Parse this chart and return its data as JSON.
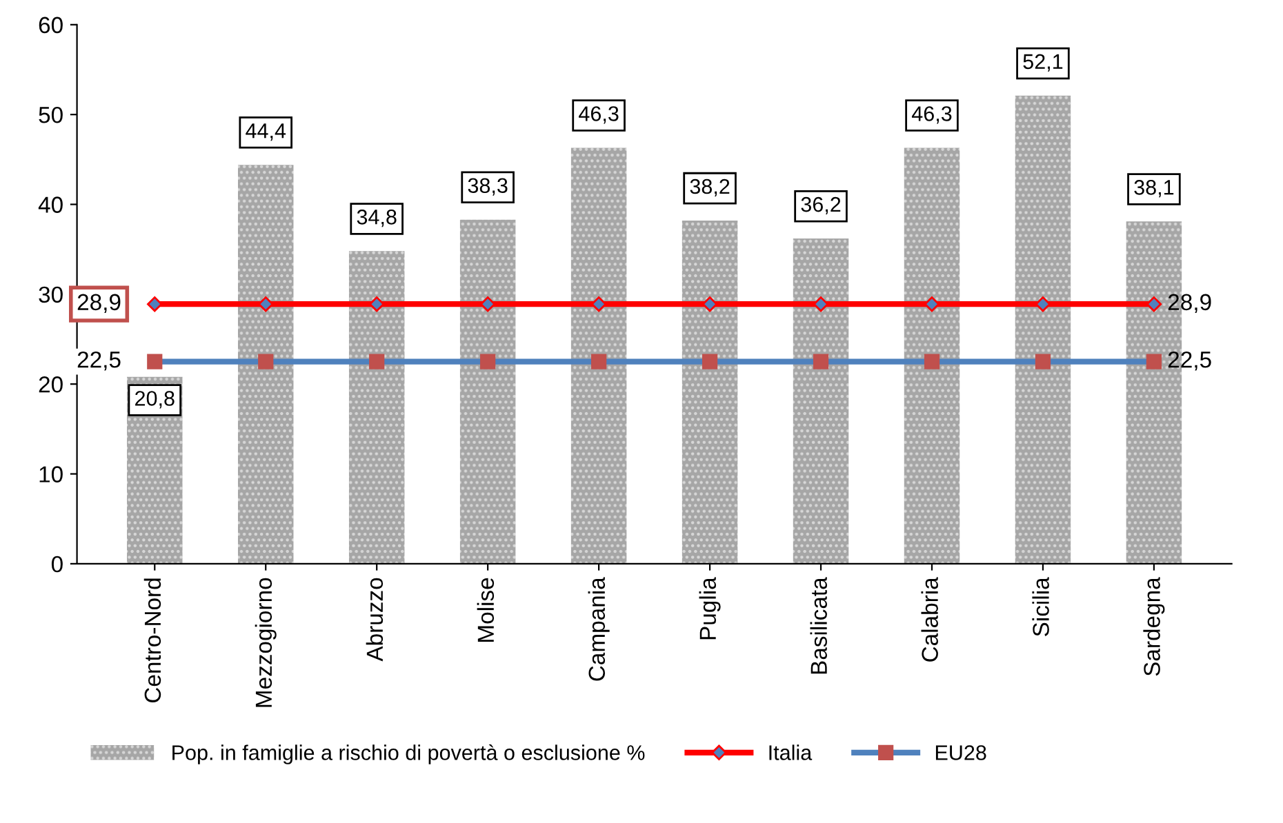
{
  "chart_data": {
    "type": "bar",
    "categories": [
      "Centro-Nord",
      "Mezzogiorno",
      "Abruzzo",
      "Molise",
      "Campania",
      "Puglia",
      "Basilicata",
      "Calabria",
      "Sicilia",
      "Sardegna"
    ],
    "series": [
      {
        "name": "Pop. in famiglie a rischio di povertà o esclusione %",
        "color": "#a6a6a6",
        "values": [
          20.8,
          44.4,
          34.8,
          38.3,
          46.3,
          38.2,
          36.2,
          46.3,
          52.1,
          38.1
        ],
        "value_labels": [
          "20,8",
          "44,4",
          "34,8",
          "38,3",
          "46,3",
          "38,2",
          "36,2",
          "46,3",
          "52,1",
          "38,1"
        ]
      },
      {
        "name": "Italia",
        "type": "line",
        "color": "#ff0000",
        "marker": "diamond",
        "values": [
          28.9,
          28.9,
          28.9,
          28.9,
          28.9,
          28.9,
          28.9,
          28.9,
          28.9,
          28.9
        ],
        "value_labels": [
          "28,9",
          null,
          null,
          null,
          null,
          null,
          null,
          null,
          null,
          "28,9"
        ]
      },
      {
        "name": "EU28",
        "type": "line",
        "color": "#4f81bd",
        "marker": "square",
        "values": [
          22.5,
          22.5,
          22.5,
          22.5,
          22.5,
          22.5,
          22.5,
          22.5,
          22.5,
          22.5
        ],
        "value_labels": [
          "22,5",
          null,
          null,
          null,
          null,
          null,
          null,
          null,
          null,
          "22,5"
        ]
      }
    ],
    "ylim": [
      0,
      60
    ],
    "yticks": [
      0,
      10,
      20,
      30,
      40,
      50,
      60
    ],
    "grid": false,
    "legend": "bottom"
  }
}
